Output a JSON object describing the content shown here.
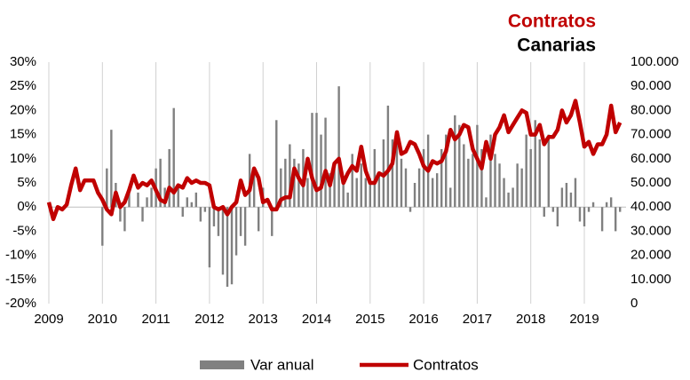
{
  "chart_data": {
    "type": "bar-line",
    "title": "Contratos",
    "subtitle": "Canarias",
    "categories": [
      "2009",
      null,
      null,
      null,
      null,
      null,
      null,
      null,
      null,
      null,
      null,
      null,
      "2010",
      null,
      null,
      null,
      null,
      null,
      null,
      null,
      null,
      null,
      null,
      null,
      "2011",
      null,
      null,
      null,
      null,
      null,
      null,
      null,
      null,
      null,
      null,
      null,
      "2012",
      null,
      null,
      null,
      null,
      null,
      null,
      null,
      null,
      null,
      null,
      null,
      "2013",
      null,
      null,
      null,
      null,
      null,
      null,
      null,
      null,
      null,
      null,
      null,
      "2014",
      null,
      null,
      null,
      null,
      null,
      null,
      null,
      null,
      null,
      null,
      null,
      "2015",
      null,
      null,
      null,
      null,
      null,
      null,
      null,
      null,
      null,
      null,
      null,
      "2016",
      null,
      null,
      null,
      null,
      null,
      null,
      null,
      null,
      null,
      null,
      null,
      "2017",
      null,
      null,
      null,
      null,
      null,
      null,
      null,
      null,
      null,
      null,
      null,
      "2018",
      null,
      null,
      null,
      null,
      null,
      null,
      null,
      null,
      null,
      null,
      null,
      "2019",
      null,
      null,
      null,
      null,
      null,
      null,
      null,
      null
    ],
    "series": [
      {
        "name": "Var anual",
        "type": "bar",
        "axis": "y",
        "color": "#808080",
        "values": [
          0,
          0,
          0,
          0,
          0,
          0,
          0,
          0,
          0,
          0,
          0,
          0,
          -8,
          8,
          16,
          5,
          -3,
          -5,
          3,
          0,
          3,
          -3,
          2,
          4,
          8,
          10,
          4,
          12,
          20.5,
          4,
          -2,
          2,
          1,
          3,
          -3,
          -1,
          -12.5,
          -4,
          -6,
          -14,
          -16.5,
          -16,
          -10,
          -6,
          -8,
          11,
          8,
          -5,
          4,
          0,
          -6,
          18,
          8,
          10,
          13,
          10,
          9,
          12,
          6,
          19.5,
          19.5,
          15,
          18.5,
          7,
          8,
          25,
          6,
          3,
          11,
          6,
          9,
          6,
          6,
          12,
          7,
          14,
          21,
          14,
          15,
          10,
          8,
          -1,
          5,
          8,
          12,
          15,
          6,
          7,
          12,
          15,
          4,
          19,
          17,
          13,
          10,
          11,
          17,
          12,
          2,
          15,
          11,
          9,
          6,
          3,
          4,
          9,
          8,
          15,
          12,
          18,
          14,
          -2,
          15,
          -1,
          -4,
          4,
          5,
          3,
          6,
          -3,
          -4,
          -1,
          1,
          0,
          -5,
          1,
          2,
          -5,
          -1
        ]
      },
      {
        "name": "Contratos",
        "type": "line",
        "axis": "y2",
        "color": "#c00000",
        "values": [
          42000,
          35000,
          40000,
          39000,
          41000,
          49000,
          56000,
          47000,
          51000,
          51000,
          51000,
          46000,
          43000,
          39000,
          37000,
          46000,
          40000,
          42000,
          47000,
          53000,
          48000,
          50000,
          49000,
          51000,
          47000,
          43000,
          42000,
          48000,
          46000,
          49000,
          48000,
          52000,
          50000,
          51000,
          50000,
          50000,
          49000,
          40000,
          39000,
          40000,
          37000,
          40000,
          42000,
          51000,
          45000,
          47000,
          56000,
          52000,
          42000,
          43000,
          39000,
          39000,
          43000,
          44000,
          44000,
          56000,
          52000,
          49000,
          60000,
          52000,
          47000,
          48000,
          55000,
          49000,
          58000,
          60000,
          50000,
          54000,
          57000,
          55000,
          65000,
          55000,
          50000,
          50000,
          54000,
          53000,
          55000,
          58000,
          71000,
          62000,
          63000,
          67000,
          66000,
          62000,
          57000,
          55000,
          59000,
          58000,
          59000,
          63000,
          72000,
          68000,
          70000,
          74000,
          73000,
          64000,
          60000,
          56000,
          67000,
          60000,
          70000,
          73000,
          78000,
          71000,
          74000,
          77000,
          80000,
          79000,
          70000,
          70000,
          74000,
          66000,
          69000,
          69000,
          72000,
          80000,
          75000,
          78000,
          84000,
          75000,
          65000,
          67000,
          62000,
          66000,
          66000,
          70000,
          82000,
          71000,
          75000
        ]
      }
    ],
    "ylim": [
      -20,
      30
    ],
    "yticks": [
      {
        "value": -20,
        "label": "-20%"
      },
      {
        "value": -15,
        "label": "-15%"
      },
      {
        "value": -10,
        "label": "-10%"
      },
      {
        "value": -5,
        "label": "-5%"
      },
      {
        "value": 0,
        "label": "0%"
      },
      {
        "value": 5,
        "label": "5%"
      },
      {
        "value": 10,
        "label": "10%"
      },
      {
        "value": 15,
        "label": "15%"
      },
      {
        "value": 20,
        "label": "20%"
      },
      {
        "value": 25,
        "label": "25%"
      },
      {
        "value": 30,
        "label": "30%"
      }
    ],
    "y2lim": [
      0,
      100000
    ],
    "y2ticks": [
      0,
      {
        "value": 10000,
        "label": "10.000"
      },
      {
        "value": 20000,
        "label": "20.000"
      },
      {
        "value": 30000,
        "label": "30.000"
      },
      {
        "value": 40000,
        "label": "40.000"
      },
      {
        "value": 50000,
        "label": "50.000"
      },
      {
        "value": 60000,
        "label": "60.000"
      },
      {
        "value": 70000,
        "label": "70.000"
      },
      {
        "value": 80000,
        "label": "80.000"
      },
      {
        "value": 90000,
        "label": "90.000"
      },
      {
        "value": 100000,
        "label": "100.000"
      }
    ],
    "legend": "bottom"
  }
}
